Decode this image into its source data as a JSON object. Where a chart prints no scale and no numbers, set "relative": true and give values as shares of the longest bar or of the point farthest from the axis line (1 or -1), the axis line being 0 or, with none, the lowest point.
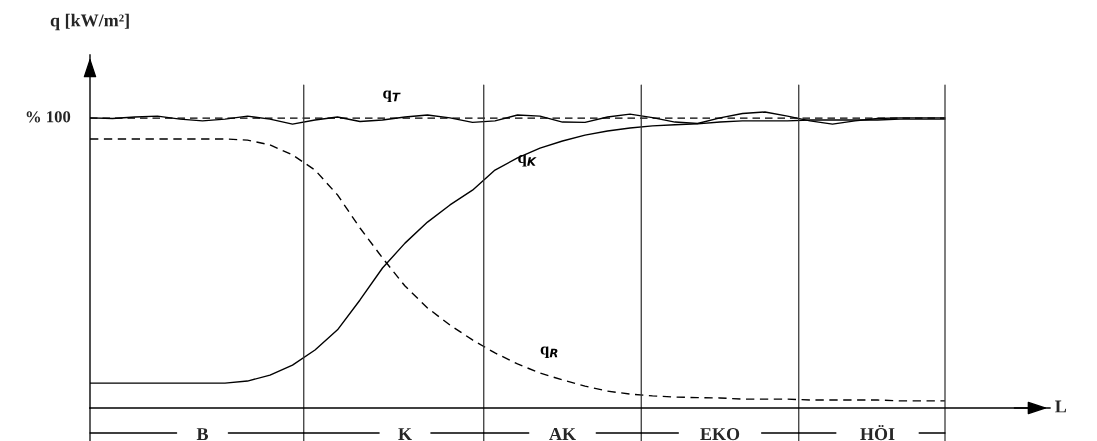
{
  "chart_data": {
    "type": "line",
    "relative": true,
    "ylabel": "q [kW/m²]",
    "legend": false,
    "grid": false,
    "marker": "none",
    "categories": [
      null,
      null,
      null,
      null,
      null,
      "B",
      null,
      null,
      null,
      null,
      null,
      null,
      null,
      null,
      "K",
      null,
      null,
      null,
      null,
      null,
      null,
      "AK",
      null,
      null,
      null,
      null,
      null,
      null,
      "EKO",
      null,
      null,
      null,
      null,
      null,
      null,
      "HÖI",
      null,
      null,
      null
    ],
    "series": [
      {
        "name": "q$_{T}$",
        "color": "#000000",
        "line_style": "solid",
        "values": [
          0.98,
          0.978,
          0.983,
          0.986,
          0.976,
          0.97,
          0.976,
          0.986,
          0.976,
          0.959,
          0.973,
          0.983,
          0.968,
          0.973,
          0.983,
          0.99,
          0.98,
          0.965,
          0.97,
          0.99,
          0.986,
          0.966,
          0.965,
          0.983,
          0.993,
          0.981,
          0.966,
          0.961,
          0.98,
          0.995,
          1.0,
          0.986,
          0.97,
          0.959,
          0.97,
          0.978,
          0.98,
          0.98,
          0.98
        ]
      },
      {
        "name": "q$_{K}$",
        "color": "#000000",
        "line_style": "solid",
        "values": [
          0.084,
          0.084,
          0.084,
          0.084,
          0.084,
          0.084,
          0.084,
          0.091,
          0.111,
          0.145,
          0.196,
          0.264,
          0.365,
          0.473,
          0.557,
          0.628,
          0.686,
          0.736,
          0.804,
          0.845,
          0.878,
          0.902,
          0.922,
          0.936,
          0.946,
          0.953,
          0.957,
          0.96,
          0.966,
          0.97,
          0.97,
          0.97,
          0.973,
          0.973,
          0.973,
          0.973,
          0.976,
          0.976,
          0.976
        ]
      },
      {
        "name": "q$_{R}$",
        "color": "#000000",
        "line_style": "dashed",
        "values": [
          0.909,
          0.909,
          0.909,
          0.909,
          0.909,
          0.909,
          0.909,
          0.905,
          0.889,
          0.855,
          0.804,
          0.72,
          0.608,
          0.507,
          0.412,
          0.338,
          0.28,
          0.23,
          0.186,
          0.149,
          0.118,
          0.095,
          0.074,
          0.057,
          0.047,
          0.041,
          0.037,
          0.035,
          0.034,
          0.03,
          0.03,
          0.03,
          0.027,
          0.027,
          0.027,
          0.027,
          0.024,
          0.024,
          0.024
        ]
      }
    ],
    "annotations": [
      "% 100",
      "L"
    ],
    "ref_lines": [
      {
        "axis": "y",
        "value": 0.979,
        "line_style": "dashed"
      }
    ]
  }
}
